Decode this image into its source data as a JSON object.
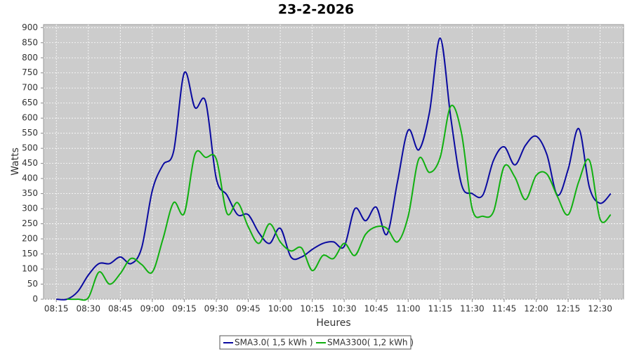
{
  "chart_data": {
    "type": "line",
    "title": "23-2-2026",
    "x_label": "Heures",
    "y_label": "Watts",
    "x": [
      "08:15",
      "08:20",
      "08:25",
      "08:30",
      "08:35",
      "08:40",
      "08:45",
      "08:50",
      "08:55",
      "09:00",
      "09:05",
      "09:10",
      "09:15",
      "09:20",
      "09:25",
      "09:30",
      "09:35",
      "09:40",
      "09:45",
      "09:50",
      "09:55",
      "10:00",
      "10:05",
      "10:10",
      "10:15",
      "10:20",
      "10:25",
      "10:30",
      "10:35",
      "10:40",
      "10:45",
      "10:50",
      "10:55",
      "11:00",
      "11:05",
      "11:10",
      "11:15",
      "11:20",
      "11:25",
      "11:30",
      "11:35",
      "11:40",
      "11:45",
      "11:50",
      "11:55",
      "12:00",
      "12:05",
      "12:10",
      "12:15",
      "12:20",
      "12:25",
      "12:30",
      "12:35"
    ],
    "series": [
      {
        "name": "SMA3.0( 1,5 kWh )",
        "color": "#0a0aa0",
        "values": [
          0,
          0,
          25,
          80,
          118,
          118,
          140,
          118,
          170,
          360,
          445,
          490,
          750,
          635,
          655,
          400,
          345,
          280,
          280,
          220,
          185,
          235,
          140,
          140,
          165,
          185,
          190,
          175,
          300,
          260,
          305,
          215,
          390,
          560,
          495,
          620,
          865,
          600,
          380,
          350,
          345,
          460,
          505,
          445,
          510,
          540,
          480,
          345,
          430,
          565,
          370,
          318,
          350
        ]
      },
      {
        "name": "SMA3300( 1,2 kWh )",
        "color": "#10b010",
        "values": [
          null,
          0,
          0,
          5,
          90,
          50,
          85,
          135,
          115,
          90,
          200,
          320,
          285,
          480,
          470,
          465,
          285,
          320,
          240,
          185,
          250,
          190,
          160,
          170,
          95,
          145,
          135,
          185,
          145,
          215,
          240,
          235,
          190,
          275,
          465,
          420,
          470,
          640,
          550,
          300,
          275,
          290,
          440,
          405,
          330,
          410,
          415,
          340,
          280,
          390,
          460,
          265,
          280
        ]
      }
    ],
    "xlim": [
      "08:09",
      "12:41"
    ],
    "xticks": [
      "08:15",
      "08:30",
      "08:45",
      "09:00",
      "09:15",
      "09:30",
      "09:45",
      "10:00",
      "10:15",
      "10:30",
      "10:45",
      "11:00",
      "11:15",
      "11:30",
      "11:45",
      "12:00",
      "12:15",
      "12:30"
    ],
    "ylim": [
      0,
      910
    ],
    "yticks": [
      0,
      50,
      100,
      150,
      200,
      250,
      300,
      350,
      400,
      450,
      500,
      550,
      600,
      650,
      700,
      750,
      800,
      850,
      900
    ],
    "grid": true
  }
}
